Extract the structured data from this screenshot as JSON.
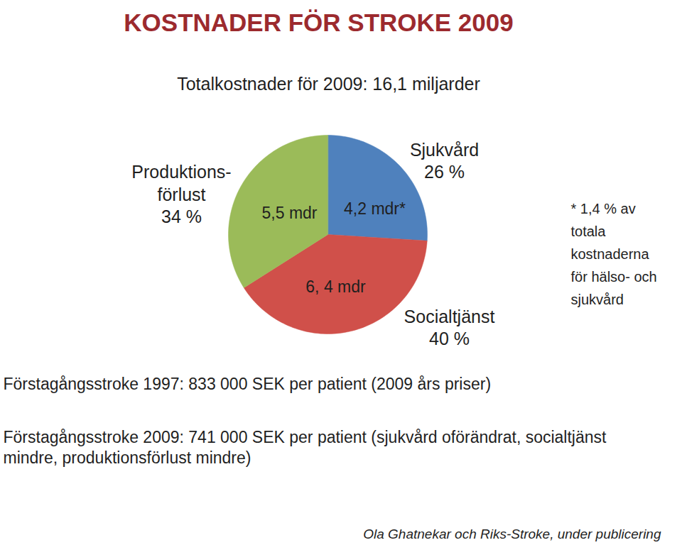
{
  "chart_data": {
    "type": "pie",
    "title": "KOSTNADER FÖR STROKE 2009",
    "subtitle": "Totalkostnader för 2009: 16,1 miljarder",
    "categories": [
      "Sjukvård",
      "Socialtjänst",
      "Produktions-förlust"
    ],
    "values": [
      26,
      40,
      34
    ],
    "value_labels": [
      "26 %",
      "40 %",
      "34 %"
    ],
    "amounts": [
      4.2,
      6.4,
      5.5
    ],
    "amount_labels": [
      "4,2 mdr*",
      "6, 4 mdr",
      "5,5 mdr"
    ],
    "colors": [
      "#4f81bd",
      "#d0504a",
      "#9bbb59"
    ],
    "data_labels": true,
    "tick_labels": false,
    "annotations": [
      "* 1,4 % av totala kostnaderna för hälso- och sjukvård",
      "Förstagångsstroke 1997: 833 000 SEK per patient (2009 års priser)",
      "Förstagångsstroke 2009: 741 000 SEK per patient (sjukvård oförändrat, socialtjänst mindre, produktionsförlust mindre)",
      "Ola Ghatnekar och Riks-Stroke, under publicering"
    ]
  }
}
